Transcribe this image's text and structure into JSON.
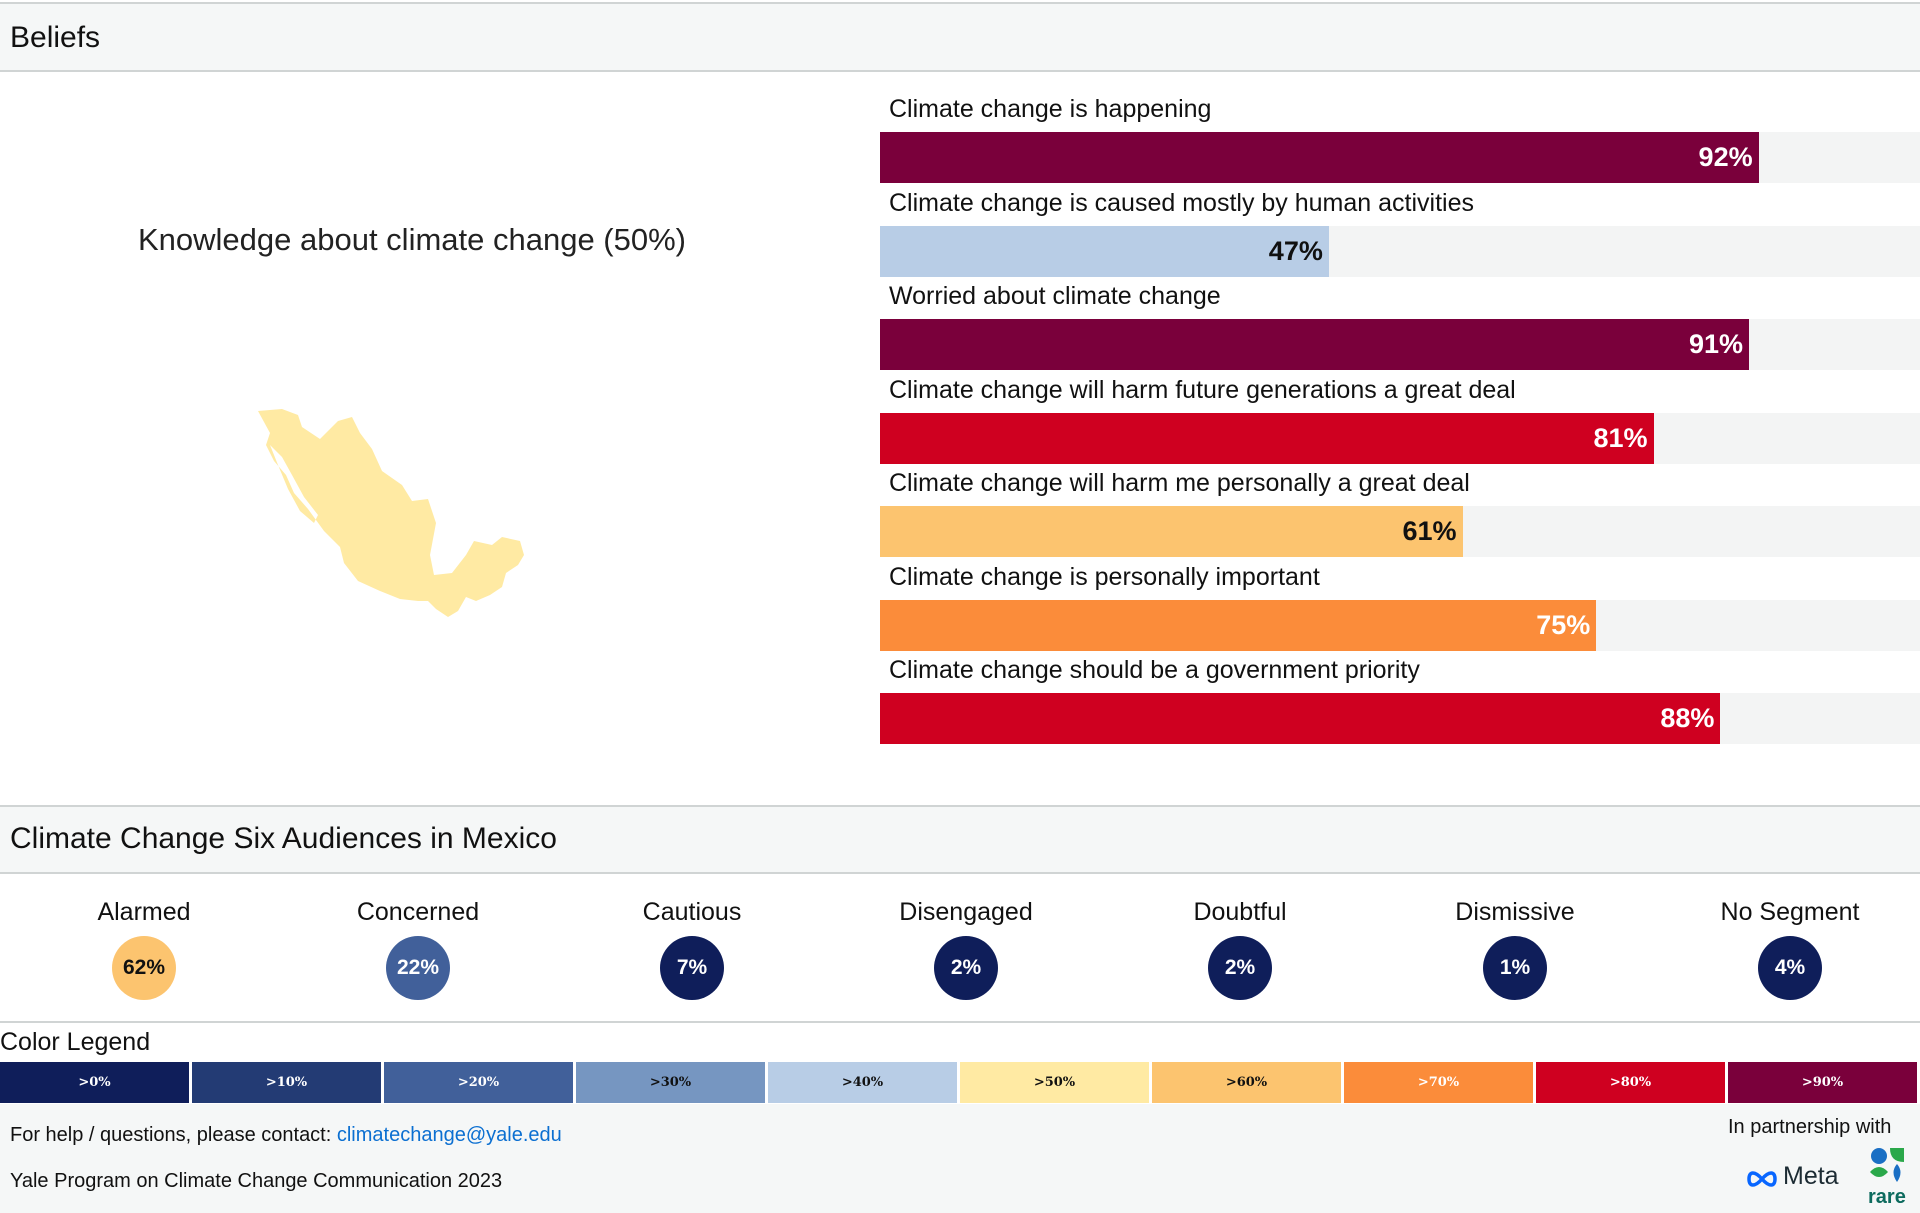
{
  "beliefs": {
    "title": "Beliefs",
    "knowledge_label": "Knowledge about climate change (50%)"
  },
  "colors": {
    "bin_0": "#0f1e5a",
    "bin_10": "#233b74",
    "bin_20": "#41609a",
    "bin_30": "#7696c1",
    "bin_40": "#b8cde6",
    "bin_50": "#ffeaa3",
    "bin_60": "#fcc46f",
    "bin_70": "#fb8c3a",
    "bin_80": "#cf0020",
    "bin_90": "#7a003b",
    "map_fill": "#ffeaa3",
    "track": "#f3f4f4"
  },
  "chart_data": {
    "type": "bar",
    "orientation": "horizontal",
    "xlim": [
      0,
      100
    ],
    "categories": [
      "Climate change is happening",
      "Climate change is caused mostly by human activities",
      "Worried about climate change",
      "Climate change will harm future generations a great deal",
      "Climate change will harm me personally a great deal",
      "Climate change is personally important",
      "Climate change should be a government priority"
    ],
    "values": [
      92,
      47,
      91,
      81,
      61,
      75,
      88
    ],
    "value_labels": [
      "92%",
      "47%",
      "91%",
      "81%",
      "61%",
      "75%",
      "88%"
    ]
  },
  "audiences": {
    "title": "Climate Change Six Audiences in Mexico",
    "items": [
      {
        "name": "Alarmed",
        "value": 62,
        "label": "62%"
      },
      {
        "name": "Concerned",
        "value": 22,
        "label": "22%"
      },
      {
        "name": "Cautious",
        "value": 7,
        "label": "7%"
      },
      {
        "name": "Disengaged",
        "value": 2,
        "label": "2%"
      },
      {
        "name": "Doubtful",
        "value": 2,
        "label": "2%"
      },
      {
        "name": "Dismissive",
        "value": 1,
        "label": "1%"
      },
      {
        "name": "No Segment",
        "value": 4,
        "label": "4%"
      }
    ]
  },
  "legend": {
    "title": "Color Legend",
    "bins": [
      ">0%",
      ">10%",
      ">20%",
      ">30%",
      ">40%",
      ">50%",
      ">60%",
      ">70%",
      ">80%",
      ">90%"
    ]
  },
  "footer": {
    "help_text": "For help / questions, please contact: ",
    "email": "climatechange@yale.edu",
    "credit": "Yale Program on Climate Change Communication 2023",
    "partnership": "In partnership with",
    "meta_logo_text": "Meta",
    "rare_logo_text": "rare"
  }
}
